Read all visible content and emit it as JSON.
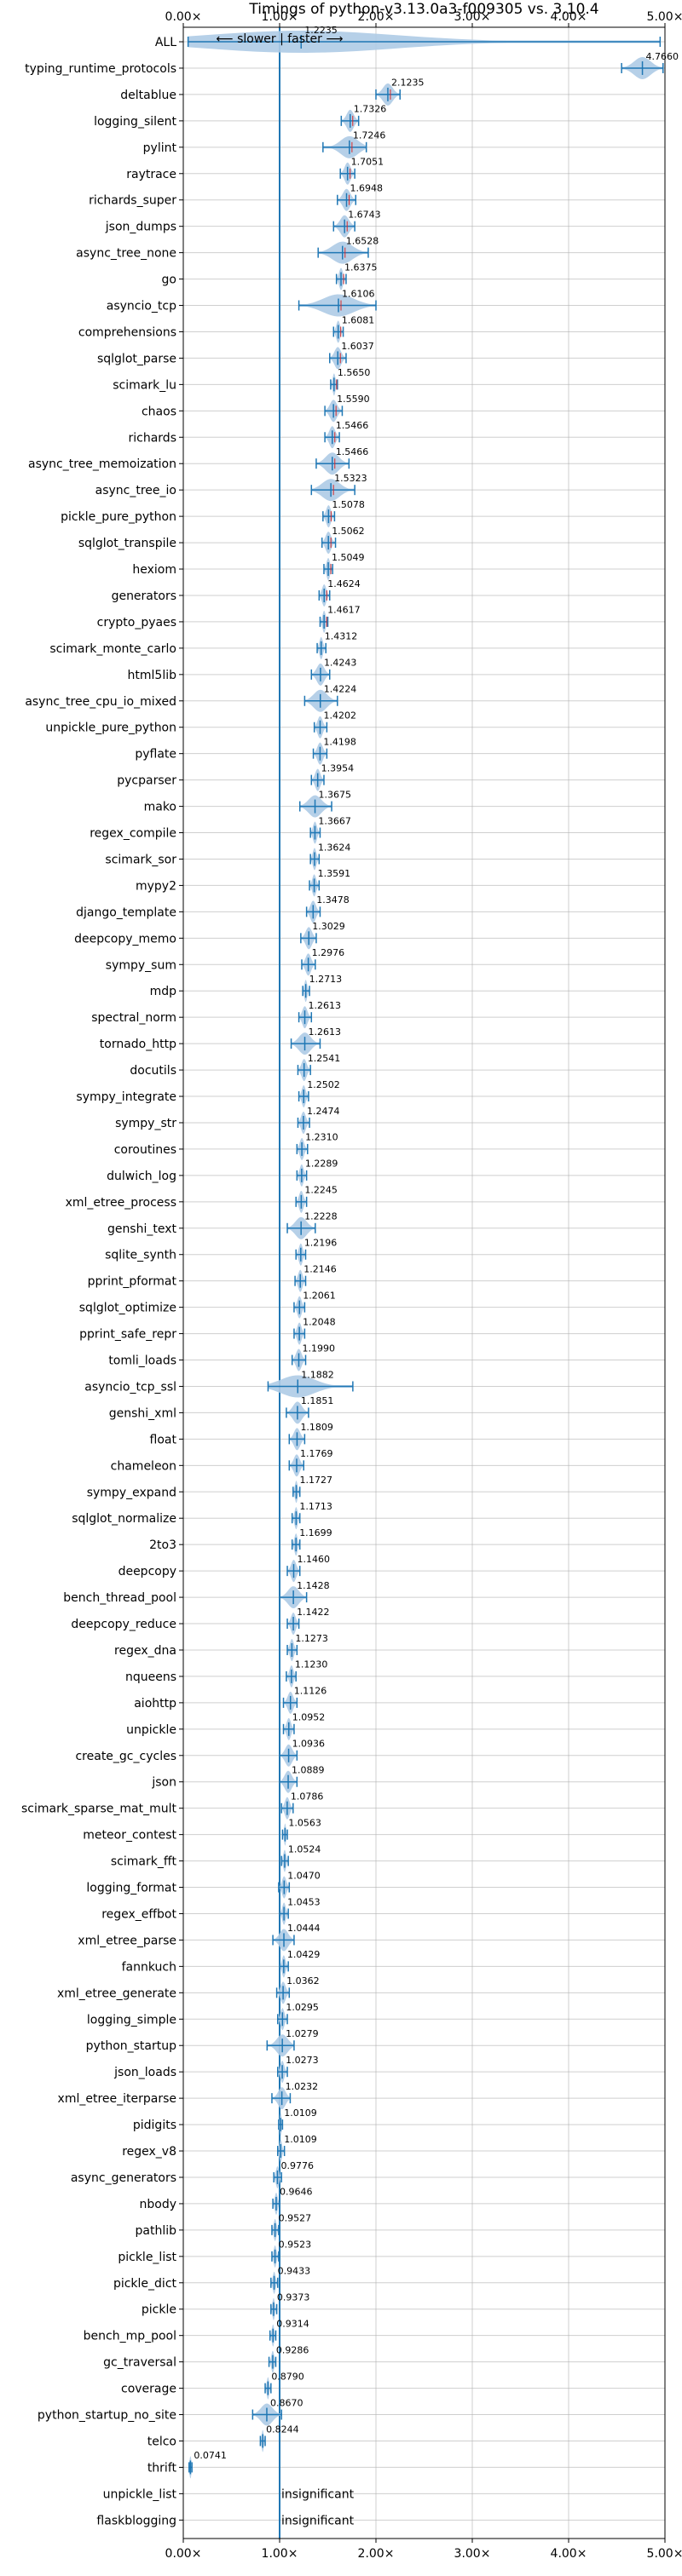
{
  "chart_data": {
    "type": "violin",
    "title": "Timings of python-v3.13.0a3-f009305 vs. 3.10.4",
    "direction_hint": "⟵ slower | faster ⟶",
    "xlabel": "",
    "ylabel": "",
    "xlim": [
      0,
      5
    ],
    "xticks": [
      0,
      1,
      2,
      3,
      4,
      5
    ],
    "xtick_labels": [
      "0.00×",
      "1.00×",
      "2.00×",
      "3.00×",
      "4.00×",
      "5.00×"
    ],
    "reference_line": 1.0,
    "grid": true,
    "colors": {
      "violin": "#aecbe6",
      "errorbar": "#1f77b4",
      "median_marker": "#d62728",
      "reference_line": "#1f77b4",
      "grid": "#b0b0b0"
    },
    "benchmarks": [
      {
        "name": "ALL",
        "label": "1.2235",
        "value": 1.2235,
        "range": [
          0.05,
          4.95
        ],
        "spread": 0.35
      },
      {
        "name": "typing_runtime_protocols",
        "label": "4.7660",
        "value": 4.766,
        "range": [
          4.55,
          4.98
        ],
        "spread": 0.18
      },
      {
        "name": "deltablue",
        "label": "2.1235",
        "value": 2.1235,
        "range": [
          2.0,
          2.25
        ],
        "spread": 0.1
      },
      {
        "name": "logging_silent",
        "label": "1.7326",
        "value": 1.7326,
        "range": [
          1.64,
          1.82
        ],
        "spread": 0.09
      },
      {
        "name": "pylint",
        "label": "1.7246",
        "value": 1.7246,
        "range": [
          1.45,
          1.9
        ],
        "spread": 0.14
      },
      {
        "name": "raytrace",
        "label": "1.7051",
        "value": 1.7051,
        "range": [
          1.63,
          1.78
        ],
        "spread": 0.07
      },
      {
        "name": "richards_super",
        "label": "1.6948",
        "value": 1.6948,
        "range": [
          1.6,
          1.79
        ],
        "spread": 0.08
      },
      {
        "name": "json_dumps",
        "label": "1.6743",
        "value": 1.6743,
        "range": [
          1.56,
          1.78
        ],
        "spread": 0.09
      },
      {
        "name": "async_tree_none",
        "label": "1.6528",
        "value": 1.6528,
        "range": [
          1.4,
          1.92
        ],
        "spread": 0.22
      },
      {
        "name": "go",
        "label": "1.6375",
        "value": 1.6375,
        "range": [
          1.59,
          1.69
        ],
        "spread": 0.05
      },
      {
        "name": "asyncio_tcp",
        "label": "1.6106",
        "value": 1.6106,
        "range": [
          1.2,
          2.0
        ],
        "spread": 0.32
      },
      {
        "name": "comprehensions",
        "label": "1.6081",
        "value": 1.6081,
        "range": [
          1.56,
          1.66
        ],
        "spread": 0.05
      },
      {
        "name": "sqlglot_parse",
        "label": "1.6037",
        "value": 1.6037,
        "range": [
          1.52,
          1.69
        ],
        "spread": 0.07
      },
      {
        "name": "scimark_lu",
        "label": "1.5650",
        "value": 1.565,
        "range": [
          1.53,
          1.6
        ],
        "spread": 0.04
      },
      {
        "name": "chaos",
        "label": "1.5590",
        "value": 1.559,
        "range": [
          1.47,
          1.65
        ],
        "spread": 0.08
      },
      {
        "name": "richards",
        "label": "1.5466",
        "value": 1.5466,
        "range": [
          1.47,
          1.62
        ],
        "spread": 0.06
      },
      {
        "name": "async_tree_memoization",
        "label": "1.5466",
        "value": 1.5466,
        "range": [
          1.38,
          1.72
        ],
        "spread": 0.13
      },
      {
        "name": "async_tree_io",
        "label": "1.5323",
        "value": 1.5323,
        "range": [
          1.33,
          1.78
        ],
        "spread": 0.17
      },
      {
        "name": "pickle_pure_python",
        "label": "1.5078",
        "value": 1.5078,
        "range": [
          1.45,
          1.57
        ],
        "spread": 0.05
      },
      {
        "name": "sqlglot_transpile",
        "label": "1.5062",
        "value": 1.5062,
        "range": [
          1.44,
          1.58
        ],
        "spread": 0.06
      },
      {
        "name": "hexiom",
        "label": "1.5049",
        "value": 1.5049,
        "range": [
          1.46,
          1.55
        ],
        "spread": 0.04
      },
      {
        "name": "generators",
        "label": "1.4624",
        "value": 1.4624,
        "range": [
          1.41,
          1.52
        ],
        "spread": 0.04
      },
      {
        "name": "crypto_pyaes",
        "label": "1.4617",
        "value": 1.4617,
        "range": [
          1.42,
          1.5
        ],
        "spread": 0.04
      },
      {
        "name": "scimark_monte_carlo",
        "label": "1.4312",
        "value": 1.4312,
        "range": [
          1.39,
          1.48
        ],
        "spread": 0.04
      },
      {
        "name": "html5lib",
        "label": "1.4243",
        "value": 1.4243,
        "range": [
          1.33,
          1.52
        ],
        "spread": 0.07
      },
      {
        "name": "async_tree_cpu_io_mixed",
        "label": "1.4224",
        "value": 1.4224,
        "range": [
          1.26,
          1.6
        ],
        "spread": 0.14
      },
      {
        "name": "unpickle_pure_python",
        "label": "1.4202",
        "value": 1.4202,
        "range": [
          1.36,
          1.49
        ],
        "spread": 0.05
      },
      {
        "name": "pyflate",
        "label": "1.4198",
        "value": 1.4198,
        "range": [
          1.35,
          1.49
        ],
        "spread": 0.05
      },
      {
        "name": "pycparser",
        "label": "1.3954",
        "value": 1.3954,
        "range": [
          1.33,
          1.46
        ],
        "spread": 0.05
      },
      {
        "name": "mako",
        "label": "1.3675",
        "value": 1.3675,
        "range": [
          1.21,
          1.54
        ],
        "spread": 0.11
      },
      {
        "name": "regex_compile",
        "label": "1.3667",
        "value": 1.3667,
        "range": [
          1.32,
          1.42
        ],
        "spread": 0.04
      },
      {
        "name": "scimark_sor",
        "label": "1.3624",
        "value": 1.3624,
        "range": [
          1.32,
          1.41
        ],
        "spread": 0.04
      },
      {
        "name": "mypy2",
        "label": "1.3591",
        "value": 1.3591,
        "range": [
          1.31,
          1.41
        ],
        "spread": 0.04
      },
      {
        "name": "django_template",
        "label": "1.3478",
        "value": 1.3478,
        "range": [
          1.28,
          1.42
        ],
        "spread": 0.05
      },
      {
        "name": "deepcopy_memo",
        "label": "1.3029",
        "value": 1.3029,
        "range": [
          1.22,
          1.38
        ],
        "spread": 0.05
      },
      {
        "name": "sympy_sum",
        "label": "1.2976",
        "value": 1.2976,
        "range": [
          1.23,
          1.37
        ],
        "spread": 0.05
      },
      {
        "name": "mdp",
        "label": "1.2713",
        "value": 1.2713,
        "range": [
          1.24,
          1.31
        ],
        "spread": 0.03
      },
      {
        "name": "spectral_norm",
        "label": "1.2613",
        "value": 1.2613,
        "range": [
          1.2,
          1.33
        ],
        "spread": 0.05
      },
      {
        "name": "tornado_http",
        "label": "1.2613",
        "value": 1.2613,
        "range": [
          1.12,
          1.42
        ],
        "spread": 0.1
      },
      {
        "name": "docutils",
        "label": "1.2541",
        "value": 1.2541,
        "range": [
          1.19,
          1.32
        ],
        "spread": 0.05
      },
      {
        "name": "sympy_integrate",
        "label": "1.2502",
        "value": 1.2502,
        "range": [
          1.2,
          1.3
        ],
        "spread": 0.04
      },
      {
        "name": "sympy_str",
        "label": "1.2474",
        "value": 1.2474,
        "range": [
          1.19,
          1.31
        ],
        "spread": 0.04
      },
      {
        "name": "coroutines",
        "label": "1.2310",
        "value": 1.231,
        "range": [
          1.18,
          1.29
        ],
        "spread": 0.04
      },
      {
        "name": "dulwich_log",
        "label": "1.2289",
        "value": 1.2289,
        "range": [
          1.18,
          1.28
        ],
        "spread": 0.04
      },
      {
        "name": "xml_etree_process",
        "label": "1.2245",
        "value": 1.2245,
        "range": [
          1.17,
          1.28
        ],
        "spread": 0.04
      },
      {
        "name": "genshi_text",
        "label": "1.2228",
        "value": 1.2228,
        "range": [
          1.08,
          1.37
        ],
        "spread": 0.09
      },
      {
        "name": "sqlite_synth",
        "label": "1.2196",
        "value": 1.2196,
        "range": [
          1.17,
          1.27
        ],
        "spread": 0.04
      },
      {
        "name": "pprint_pformat",
        "label": "1.2146",
        "value": 1.2146,
        "range": [
          1.16,
          1.27
        ],
        "spread": 0.04
      },
      {
        "name": "sqlglot_optimize",
        "label": "1.2061",
        "value": 1.2061,
        "range": [
          1.15,
          1.26
        ],
        "spread": 0.04
      },
      {
        "name": "pprint_safe_repr",
        "label": "1.2048",
        "value": 1.2048,
        "range": [
          1.15,
          1.26
        ],
        "spread": 0.04
      },
      {
        "name": "tomli_loads",
        "label": "1.1990",
        "value": 1.199,
        "range": [
          1.13,
          1.27
        ],
        "spread": 0.05
      },
      {
        "name": "asyncio_tcp_ssl",
        "label": "1.1882",
        "value": 1.1882,
        "range": [
          0.88,
          1.76
        ],
        "spread": 0.22
      },
      {
        "name": "genshi_xml",
        "label": "1.1851",
        "value": 1.1851,
        "range": [
          1.07,
          1.3
        ],
        "spread": 0.07
      },
      {
        "name": "float",
        "label": "1.1809",
        "value": 1.1809,
        "range": [
          1.1,
          1.26
        ],
        "spread": 0.06
      },
      {
        "name": "chameleon",
        "label": "1.1769",
        "value": 1.1769,
        "range": [
          1.1,
          1.25
        ],
        "spread": 0.06
      },
      {
        "name": "sympy_expand",
        "label": "1.1727",
        "value": 1.1727,
        "range": [
          1.14,
          1.21
        ],
        "spread": 0.03
      },
      {
        "name": "sqlglot_normalize",
        "label": "1.1713",
        "value": 1.1713,
        "range": [
          1.13,
          1.21
        ],
        "spread": 0.03
      },
      {
        "name": "2to3",
        "label": "1.1699",
        "value": 1.1699,
        "range": [
          1.13,
          1.21
        ],
        "spread": 0.03
      },
      {
        "name": "deepcopy",
        "label": "1.1460",
        "value": 1.146,
        "range": [
          1.08,
          1.21
        ],
        "spread": 0.05
      },
      {
        "name": "bench_thread_pool",
        "label": "1.1428",
        "value": 1.1428,
        "range": [
          1.0,
          1.28
        ],
        "spread": 0.1
      },
      {
        "name": "deepcopy_reduce",
        "label": "1.1422",
        "value": 1.1422,
        "range": [
          1.08,
          1.2
        ],
        "spread": 0.05
      },
      {
        "name": "regex_dna",
        "label": "1.1273",
        "value": 1.1273,
        "range": [
          1.08,
          1.18
        ],
        "spread": 0.04
      },
      {
        "name": "nqueens",
        "label": "1.1230",
        "value": 1.123,
        "range": [
          1.07,
          1.17
        ],
        "spread": 0.04
      },
      {
        "name": "aiohttp",
        "label": "1.1126",
        "value": 1.1126,
        "range": [
          1.04,
          1.18
        ],
        "spread": 0.05
      },
      {
        "name": "unpickle",
        "label": "1.0952",
        "value": 1.0952,
        "range": [
          1.04,
          1.15
        ],
        "spread": 0.04
      },
      {
        "name": "create_gc_cycles",
        "label": "1.0936",
        "value": 1.0936,
        "range": [
          1.0,
          1.18
        ],
        "spread": 0.06
      },
      {
        "name": "json",
        "label": "1.0889",
        "value": 1.0889,
        "range": [
          1.0,
          1.18
        ],
        "spread": 0.06
      },
      {
        "name": "scimark_sparse_mat_mult",
        "label": "1.0786",
        "value": 1.0786,
        "range": [
          1.02,
          1.14
        ],
        "spread": 0.04
      },
      {
        "name": "meteor_contest",
        "label": "1.0563",
        "value": 1.0563,
        "range": [
          1.03,
          1.08
        ],
        "spread": 0.02
      },
      {
        "name": "scimark_fft",
        "label": "1.0524",
        "value": 1.0524,
        "range": [
          1.02,
          1.09
        ],
        "spread": 0.03
      },
      {
        "name": "logging_format",
        "label": "1.0470",
        "value": 1.047,
        "range": [
          0.99,
          1.1
        ],
        "spread": 0.04
      },
      {
        "name": "regex_effbot",
        "label": "1.0453",
        "value": 1.0453,
        "range": [
          1.0,
          1.09
        ],
        "spread": 0.03
      },
      {
        "name": "xml_etree_parse",
        "label": "1.0444",
        "value": 1.0444,
        "range": [
          0.93,
          1.15
        ],
        "spread": 0.07
      },
      {
        "name": "fannkuch",
        "label": "1.0429",
        "value": 1.0429,
        "range": [
          1.0,
          1.09
        ],
        "spread": 0.03
      },
      {
        "name": "xml_etree_generate",
        "label": "1.0362",
        "value": 1.0362,
        "range": [
          0.97,
          1.1
        ],
        "spread": 0.05
      },
      {
        "name": "logging_simple",
        "label": "1.0295",
        "value": 1.0295,
        "range": [
          0.98,
          1.08
        ],
        "spread": 0.04
      },
      {
        "name": "python_startup",
        "label": "1.0279",
        "value": 1.0279,
        "range": [
          0.87,
          1.15
        ],
        "spread": 0.09
      },
      {
        "name": "json_loads",
        "label": "1.0273",
        "value": 1.0273,
        "range": [
          0.98,
          1.08
        ],
        "spread": 0.03
      },
      {
        "name": "xml_etree_iterparse",
        "label": "1.0232",
        "value": 1.0232,
        "range": [
          0.92,
          1.11
        ],
        "spread": 0.06
      },
      {
        "name": "pidigits",
        "label": "1.0109",
        "value": 1.0109,
        "range": [
          0.99,
          1.03
        ],
        "spread": 0.02
      },
      {
        "name": "regex_v8",
        "label": "1.0109",
        "value": 1.0109,
        "range": [
          0.98,
          1.05
        ],
        "spread": 0.02
      },
      {
        "name": "async_generators",
        "label": "0.9776",
        "value": 0.9776,
        "range": [
          0.94,
          1.02
        ],
        "spread": 0.03
      },
      {
        "name": "nbody",
        "label": "0.9646",
        "value": 0.9646,
        "range": [
          0.93,
          1.0
        ],
        "spread": 0.03
      },
      {
        "name": "pathlib",
        "label": "0.9527",
        "value": 0.9527,
        "range": [
          0.92,
          0.99
        ],
        "spread": 0.03
      },
      {
        "name": "pickle_list",
        "label": "0.9523",
        "value": 0.9523,
        "range": [
          0.92,
          0.99
        ],
        "spread": 0.03
      },
      {
        "name": "pickle_dict",
        "label": "0.9433",
        "value": 0.9433,
        "range": [
          0.91,
          0.98
        ],
        "spread": 0.03
      },
      {
        "name": "pickle",
        "label": "0.9373",
        "value": 0.9373,
        "range": [
          0.91,
          0.97
        ],
        "spread": 0.02
      },
      {
        "name": "bench_mp_pool",
        "label": "0.9314",
        "value": 0.9314,
        "range": [
          0.9,
          0.96
        ],
        "spread": 0.02
      },
      {
        "name": "gc_traversal",
        "label": "0.9286",
        "value": 0.9286,
        "range": [
          0.89,
          0.96
        ],
        "spread": 0.03
      },
      {
        "name": "coverage",
        "label": "0.8790",
        "value": 0.879,
        "range": [
          0.85,
          0.91
        ],
        "spread": 0.02
      },
      {
        "name": "python_startup_no_site",
        "label": "0.8670",
        "value": 0.867,
        "range": [
          0.72,
          1.02
        ],
        "spread": 0.09
      },
      {
        "name": "telco",
        "label": "0.8244",
        "value": 0.8244,
        "range": [
          0.8,
          0.85
        ],
        "spread": 0.02
      },
      {
        "name": "thrift",
        "label": "0.0741",
        "value": 0.0741,
        "range": [
          0.06,
          0.09
        ],
        "spread": 0.01
      },
      {
        "name": "unpickle_list",
        "label": "insignificant",
        "value": null
      },
      {
        "name": "flaskblogging",
        "label": "insignificant",
        "value": null
      }
    ]
  }
}
